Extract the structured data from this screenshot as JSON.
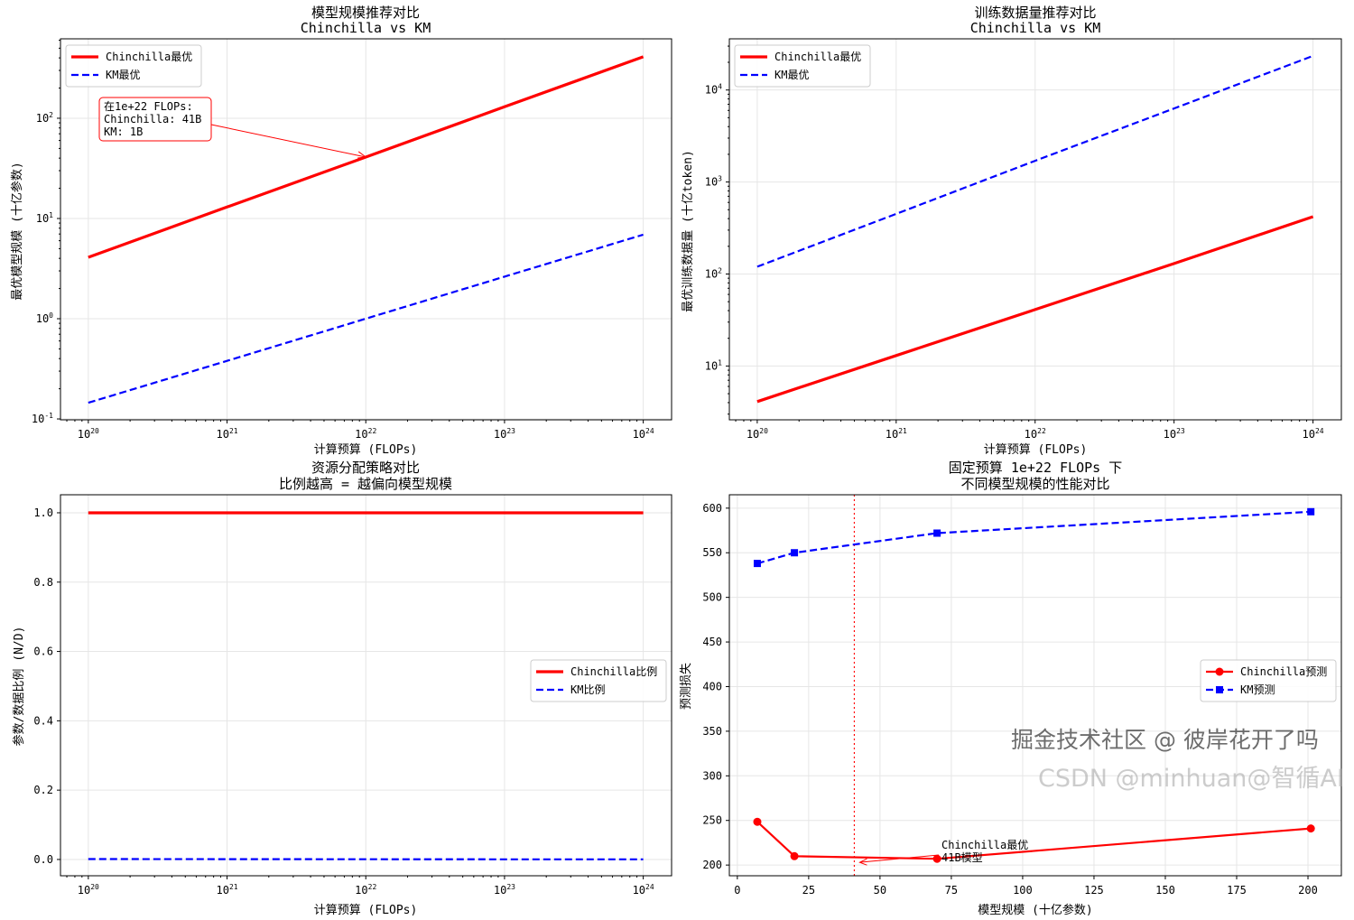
{
  "chart_data": [
    {
      "id": "tl",
      "type": "line",
      "title": [
        "模型规模推荐对比",
        "Chinchilla vs KM"
      ],
      "xlabel": "计算预算 (FLOPs)",
      "ylabel": "最优模型规模 (十亿参数)",
      "xscale": "log",
      "yscale": "log",
      "xlim": [
        6.3e+19,
        1.6e+24
      ],
      "ylim": [
        0.098,
        620
      ],
      "xticks": [
        1e+20,
        1e+21,
        1e+22,
        1e+23,
        1e+24
      ],
      "yticks": [
        0.1,
        1,
        10,
        100
      ],
      "grid": true,
      "legend": "upper-left",
      "x": [
        1e+20,
        1e+21,
        1e+22,
        1e+23,
        1e+24
      ],
      "series": [
        {
          "name": "Chinchilla最优",
          "values": [
            4.1,
            13,
            41,
            130,
            410
          ],
          "color": "#ff0000",
          "dash": "solid",
          "width": 3.2
        },
        {
          "name": "KM最优",
          "values": [
            0.145,
            0.38,
            1.0,
            2.63,
            6.9
          ],
          "color": "#0000ff",
          "dash": "dashed",
          "width": 2.2
        }
      ],
      "annotation": {
        "lines": [
          "在1e+22 FLOPs:",
          "Chinchilla: 41B",
          "KM: 1B"
        ],
        "x": 1e+22,
        "y": 41,
        "color": "#ff0000"
      }
    },
    {
      "id": "tr",
      "type": "line",
      "title": [
        "训练数据量推荐对比",
        "Chinchilla vs KM"
      ],
      "xlabel": "计算预算 (FLOPs)",
      "ylabel": "最优训练数据量 (十亿token)",
      "xscale": "log",
      "yscale": "log",
      "xlim": [
        6.3e+19,
        1.6e+24
      ],
      "ylim": [
        2.6,
        36000
      ],
      "xticks": [
        1e+20,
        1e+21,
        1e+22,
        1e+23,
        1e+24
      ],
      "yticks": [
        10,
        100,
        1000,
        10000
      ],
      "grid": true,
      "legend": "upper-left",
      "x": [
        1e+20,
        1e+21,
        1e+22,
        1e+23,
        1e+24
      ],
      "series": [
        {
          "name": "Chinchilla最优",
          "values": [
            4.1,
            13,
            41,
            130,
            420
          ],
          "color": "#ff0000",
          "dash": "solid",
          "width": 3.2
        },
        {
          "name": "KM最优",
          "values": [
            120,
            450,
            1700,
            6300,
            23500
          ],
          "color": "#0000ff",
          "dash": "dashed",
          "width": 2.2
        }
      ]
    },
    {
      "id": "bl",
      "type": "line",
      "title": [
        "资源分配策略对比",
        "比例越高 = 越偏向模型规模"
      ],
      "xlabel": "计算预算 (FLOPs)",
      "ylabel": "参数/数据比例 (N/D)",
      "xscale": "log",
      "yscale": "linear",
      "xlim": [
        6.3e+19,
        1.6e+24
      ],
      "ylim": [
        -0.047,
        1.052
      ],
      "xticks": [
        1e+20,
        1e+21,
        1e+22,
        1e+23,
        1e+24
      ],
      "yticks": [
        0.0,
        0.2,
        0.4,
        0.6,
        0.8,
        1.0
      ],
      "grid": true,
      "legend": "center-right",
      "x": [
        1e+20,
        1e+21,
        1e+22,
        1e+23,
        1e+24
      ],
      "series": [
        {
          "name": "Chinchilla比例",
          "values": [
            1.0,
            1.0,
            1.0,
            1.0,
            1.0
          ],
          "color": "#ff0000",
          "dash": "solid",
          "width": 3.2
        },
        {
          "name": "KM比例",
          "values": [
            0.0012,
            0.0008,
            0.0006,
            0.0004,
            0.0003
          ],
          "color": "#0000ff",
          "dash": "dashed",
          "width": 2.2
        }
      ]
    },
    {
      "id": "br",
      "type": "line",
      "title": [
        "固定预算 1e+22 FLOPs 下",
        "不同模型规模的性能对比"
      ],
      "xlabel": "模型规模 (十亿参数)",
      "ylabel": "预测损失",
      "xscale": "linear",
      "yscale": "linear",
      "xlim": [
        -2.8,
        211.7
      ],
      "ylim": [
        188,
        615
      ],
      "xticks": [
        0,
        25,
        50,
        75,
        100,
        125,
        150,
        175,
        200
      ],
      "yticks": [
        200,
        250,
        300,
        350,
        400,
        450,
        500,
        550,
        600
      ],
      "grid": true,
      "legend": "center-right",
      "x": [
        7,
        20,
        70,
        201
      ],
      "series": [
        {
          "name": "Chinchilla预测",
          "values": [
            248.5,
            210,
            207,
            241
          ],
          "color": "#ff0000",
          "dash": "solid",
          "width": 2.2,
          "marker": "circle"
        },
        {
          "name": "KM预测",
          "values": [
            538,
            550,
            572,
            596
          ],
          "color": "#0000ff",
          "dash": "dashed",
          "width": 2.2,
          "marker": "square"
        }
      ],
      "vline": {
        "x": 41,
        "color": "#ff0000",
        "style": "dotted"
      },
      "annotation": {
        "lines": [
          "Chinchilla最优",
          "41B模型"
        ],
        "x": 41,
        "y": 203,
        "color": "#ff0000"
      }
    }
  ],
  "watermark": {
    "line1": "掘金技术社区 @ 彼岸花开了吗",
    "line2": "CSDN @minhuan@智循AI"
  }
}
